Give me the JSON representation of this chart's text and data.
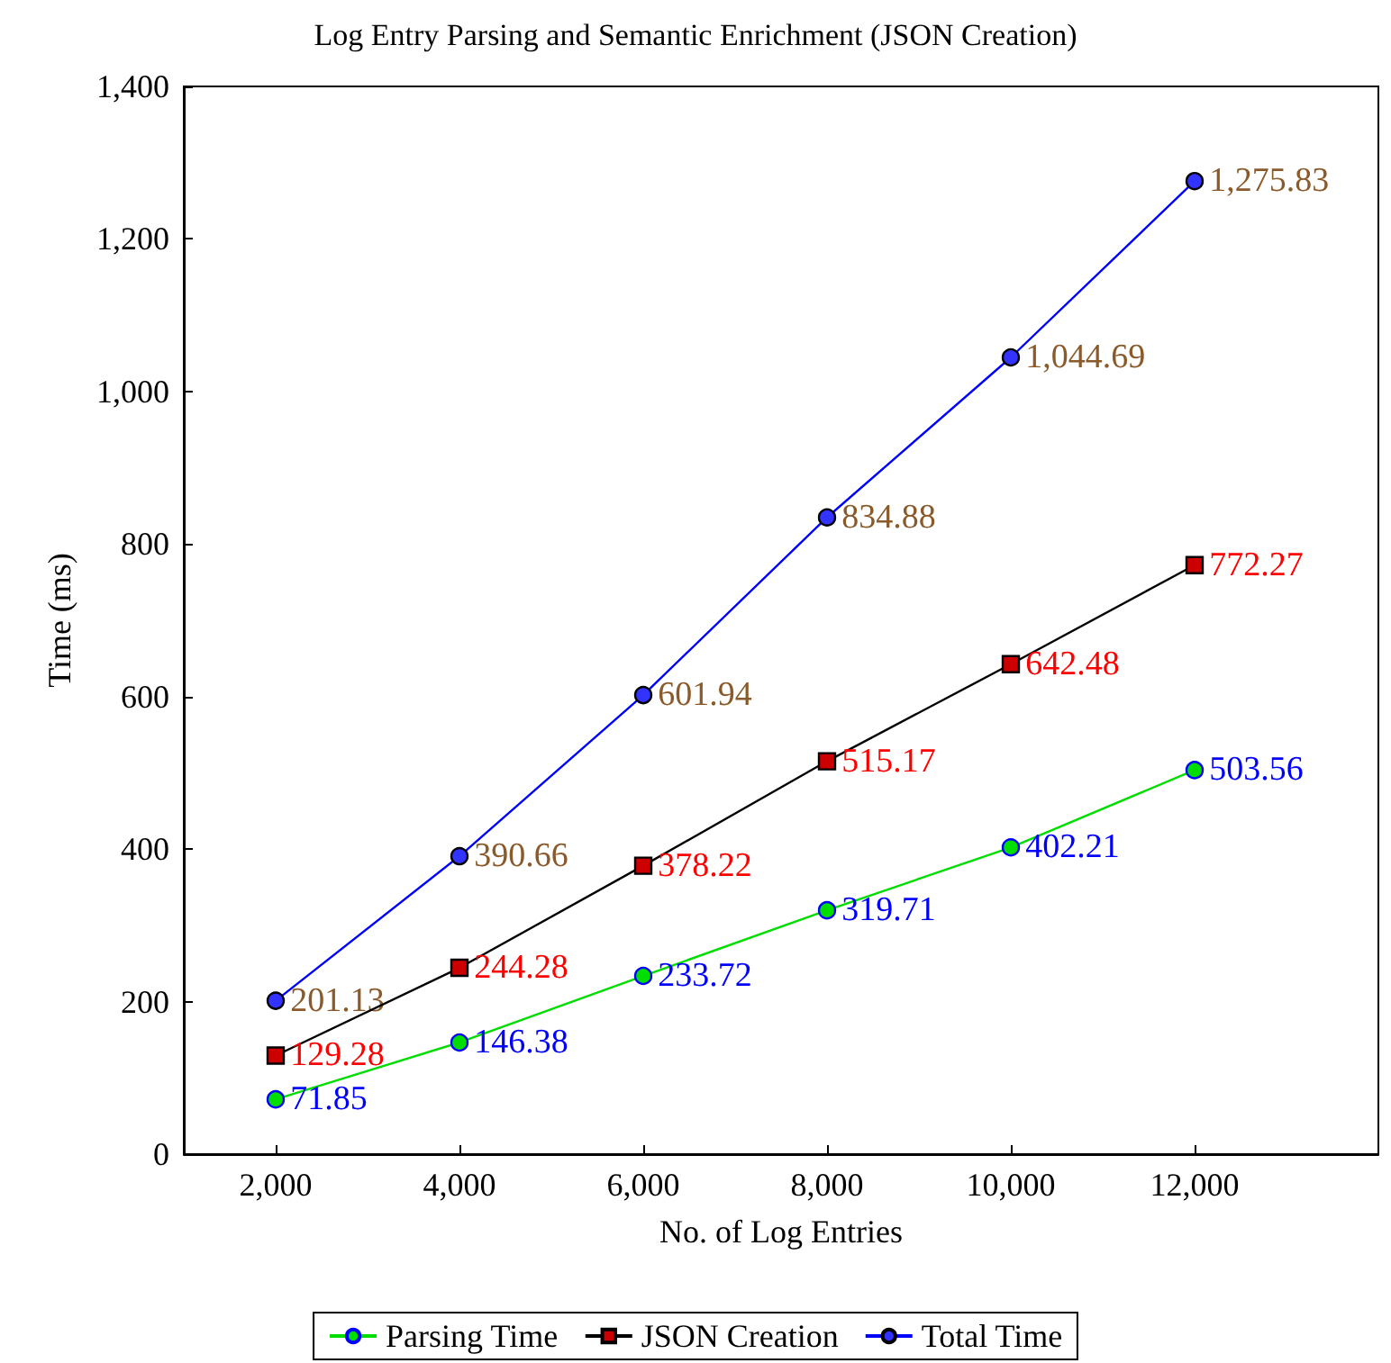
{
  "chart_data": {
    "type": "line",
    "title": "Log Entry Parsing and Semantic Enrichment (JSON Creation)",
    "xlabel": "No. of Log Entries",
    "ylabel": "Time (ms)",
    "x": [
      2000,
      4000,
      6000,
      8000,
      10000,
      12000
    ],
    "series": [
      {
        "name": "Parsing Time",
        "color": "#00dd00",
        "marker": "circle",
        "values": [
          71.85,
          146.38,
          233.72,
          319.71,
          402.21,
          503.56
        ]
      },
      {
        "name": "JSON Creation",
        "color": "#000000",
        "marker": "square",
        "values": [
          129.28,
          244.28,
          378.22,
          515.17,
          642.48,
          772.27
        ]
      },
      {
        "name": "Total Time",
        "color": "#0000ff",
        "marker": "circle",
        "values": [
          201.13,
          390.66,
          601.94,
          834.88,
          1044.69,
          1275.83
        ],
        "value_labels": [
          "201.13",
          "390.66",
          "601.94",
          "834.88",
          "1,044.69",
          "1,275.83"
        ]
      }
    ],
    "xlim": [
      1000,
      14000
    ],
    "ylim": [
      0,
      1400
    ],
    "xticks": [
      {
        "value": 2000,
        "label": "2,000"
      },
      {
        "value": 4000,
        "label": "4,000"
      },
      {
        "value": 6000,
        "label": "6,000"
      },
      {
        "value": 8000,
        "label": "8,000"
      },
      {
        "value": 10000,
        "label": "10,000"
      },
      {
        "value": 12000,
        "label": "12,000"
      }
    ],
    "yticks": [
      0,
      {
        "value": 200,
        "label": "200"
      },
      {
        "value": 400,
        "label": "400"
      },
      {
        "value": 600,
        "label": "600"
      },
      {
        "value": 800,
        "label": "800"
      },
      {
        "value": 1000,
        "label": "1,000"
      },
      {
        "value": 1200,
        "label": "1,200"
      },
      {
        "value": 1400,
        "label": "1,400"
      }
    ],
    "data_labels": true,
    "grid": false,
    "legend": "bottom",
    "line_style": "solid"
  }
}
